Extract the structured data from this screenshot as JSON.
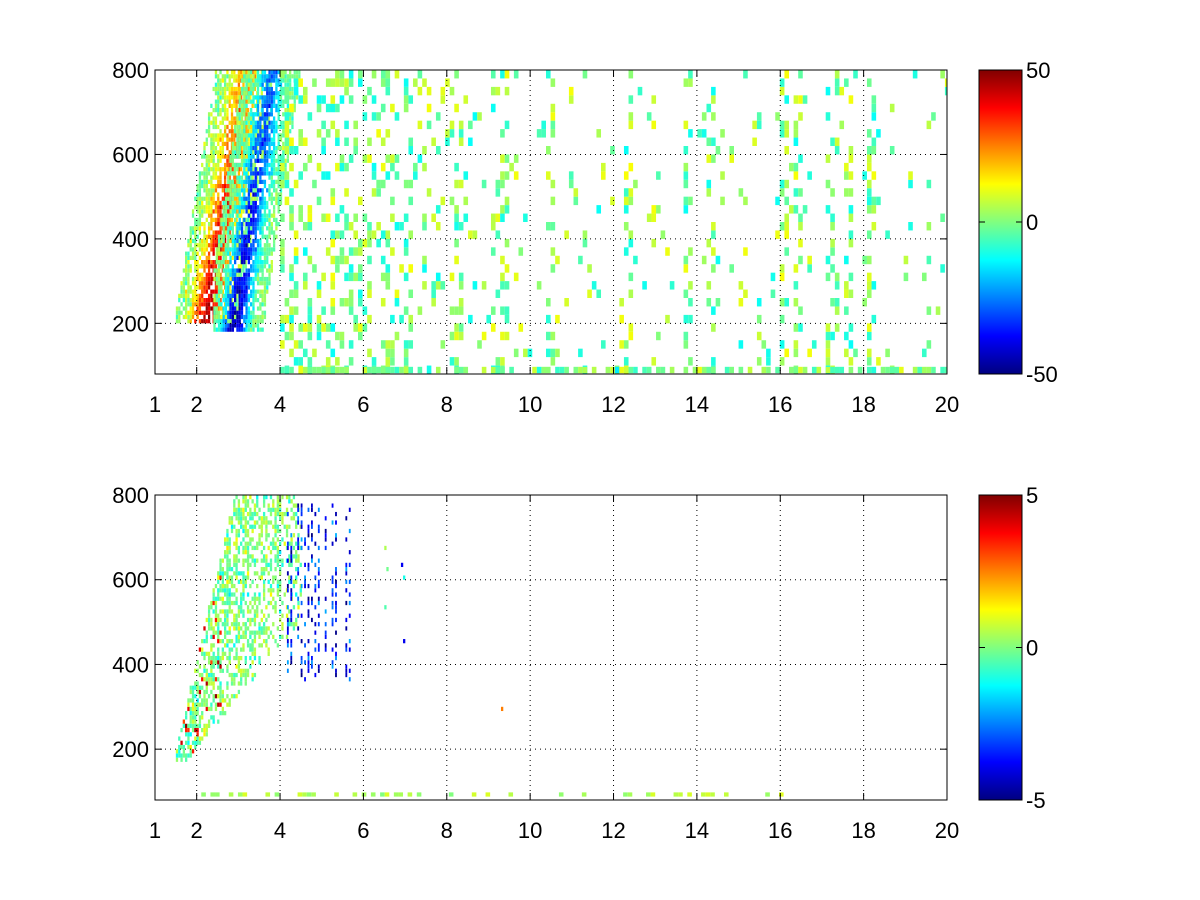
{
  "chart_data": [
    {
      "type": "heatmap",
      "name": "top-panel",
      "xlim": [
        1,
        20
      ],
      "ylim": [
        80,
        800
      ],
      "x_ticks": [
        1,
        2,
        4,
        6,
        8,
        10,
        12,
        14,
        16,
        18,
        20
      ],
      "x_tick_labels": [
        "1",
        "2",
        "4",
        "6",
        "8",
        "10",
        "12",
        "14",
        "16",
        "18",
        "20"
      ],
      "y_ticks": [
        200,
        400,
        600,
        800
      ],
      "y_tick_labels": [
        "200",
        "400",
        "600",
        "800"
      ],
      "grid": true,
      "colormap": "jet",
      "clim": [
        -50,
        50
      ],
      "colorbar_ticks": [
        -50,
        0,
        50
      ],
      "colorbar_tick_labels": [
        "-50",
        "0",
        "50"
      ],
      "features": [
        {
          "kind": "positive-ridge",
          "x_range": [
            1.5,
            3.8
          ],
          "y_range": [
            200,
            800
          ],
          "peak_value": 45
        },
        {
          "kind": "negative-ridge",
          "x_range": [
            2.4,
            4.5
          ],
          "y_range": [
            180,
            800
          ],
          "peak_value": -45
        },
        {
          "kind": "sparse-near-zero-scatter",
          "x_range": [
            4,
            20
          ],
          "y_range": [
            80,
            800
          ],
          "value_range": [
            -12,
            12
          ]
        }
      ]
    },
    {
      "type": "heatmap",
      "name": "bottom-panel",
      "xlim": [
        1,
        20
      ],
      "ylim": [
        80,
        800
      ],
      "x_ticks": [
        1,
        2,
        4,
        6,
        8,
        10,
        12,
        14,
        16,
        18,
        20
      ],
      "x_tick_labels": [
        "1",
        "2",
        "4",
        "6",
        "8",
        "10",
        "12",
        "14",
        "16",
        "18",
        "20"
      ],
      "y_ticks": [
        200,
        400,
        600,
        800
      ],
      "y_tick_labels": [
        "200",
        "400",
        "600",
        "800"
      ],
      "grid": true,
      "colormap": "jet",
      "clim": [
        -5,
        5
      ],
      "colorbar_ticks": [
        -5,
        0,
        5
      ],
      "colorbar_tick_labels": [
        "-5",
        "0",
        "5"
      ],
      "features": [
        {
          "kind": "near-zero-cluster",
          "x_range": [
            1.5,
            4.5
          ],
          "y_range": [
            170,
            800
          ],
          "value_range": [
            -2,
            3
          ]
        },
        {
          "kind": "negative-streaks",
          "x_range": [
            4,
            5.8
          ],
          "y_range": [
            360,
            780
          ],
          "value_range": [
            -5,
            -2
          ]
        },
        {
          "kind": "isolated-points",
          "x_range": [
            6.5,
            7
          ],
          "y_range": [
            450,
            680
          ],
          "value_range": [
            -4,
            4
          ]
        },
        {
          "kind": "baseline-points",
          "x_range": [
            2,
            16.5
          ],
          "y_range": [
            85,
            110
          ],
          "value_range": [
            0,
            1
          ]
        }
      ]
    }
  ]
}
